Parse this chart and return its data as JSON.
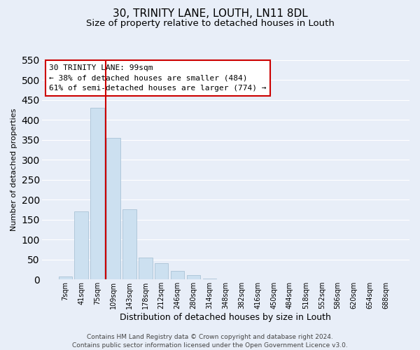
{
  "title": "30, TRINITY LANE, LOUTH, LN11 8DL",
  "subtitle": "Size of property relative to detached houses in Louth",
  "xlabel": "Distribution of detached houses by size in Louth",
  "ylabel": "Number of detached properties",
  "footer_line1": "Contains HM Land Registry data © Crown copyright and database right 2024.",
  "footer_line2": "Contains public sector information licensed under the Open Government Licence v3.0.",
  "bar_labels": [
    "7sqm",
    "41sqm",
    "75sqm",
    "109sqm",
    "143sqm",
    "178sqm",
    "212sqm",
    "246sqm",
    "280sqm",
    "314sqm",
    "348sqm",
    "382sqm",
    "416sqm",
    "450sqm",
    "484sqm",
    "518sqm",
    "552sqm",
    "586sqm",
    "620sqm",
    "654sqm",
    "688sqm"
  ],
  "bar_values": [
    8,
    170,
    430,
    355,
    175,
    55,
    40,
    22,
    10,
    2,
    0,
    0,
    0,
    0,
    0,
    0,
    1,
    0,
    0,
    1,
    0
  ],
  "bar_color": "#cce0f0",
  "bar_edge_color": "#a0bcd0",
  "vline_x": 2.5,
  "vline_color": "#cc0000",
  "annotation_title": "30 TRINITY LANE: 99sqm",
  "annotation_line1": "← 38% of detached houses are smaller (484)",
  "annotation_line2": "61% of semi-detached houses are larger (774) →",
  "annotation_box_color": "white",
  "annotation_box_edge_color": "#cc0000",
  "ylim": [
    0,
    550
  ],
  "yticks": [
    0,
    50,
    100,
    150,
    200,
    250,
    300,
    350,
    400,
    450,
    500,
    550
  ],
  "background_color": "#e8eef8",
  "grid_color": "white",
  "title_fontsize": 11,
  "subtitle_fontsize": 9.5,
  "xlabel_fontsize": 9,
  "ylabel_fontsize": 8,
  "tick_fontsize": 7,
  "annotation_fontsize": 8,
  "footer_fontsize": 6.5
}
